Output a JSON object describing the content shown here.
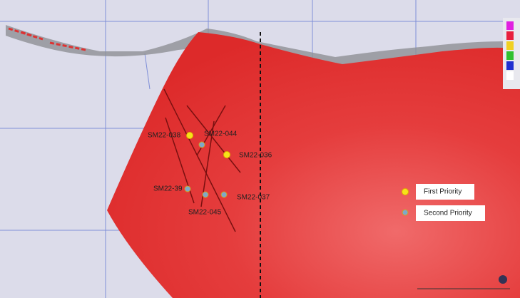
{
  "holes": {
    "labels": [
      "SM22-038",
      "SM22-044",
      "SM22-036",
      "SM22-39",
      "SM22-037",
      "SM22-045"
    ]
  },
  "legend": {
    "items": [
      "First Priority",
      "Second Priority"
    ]
  }
}
